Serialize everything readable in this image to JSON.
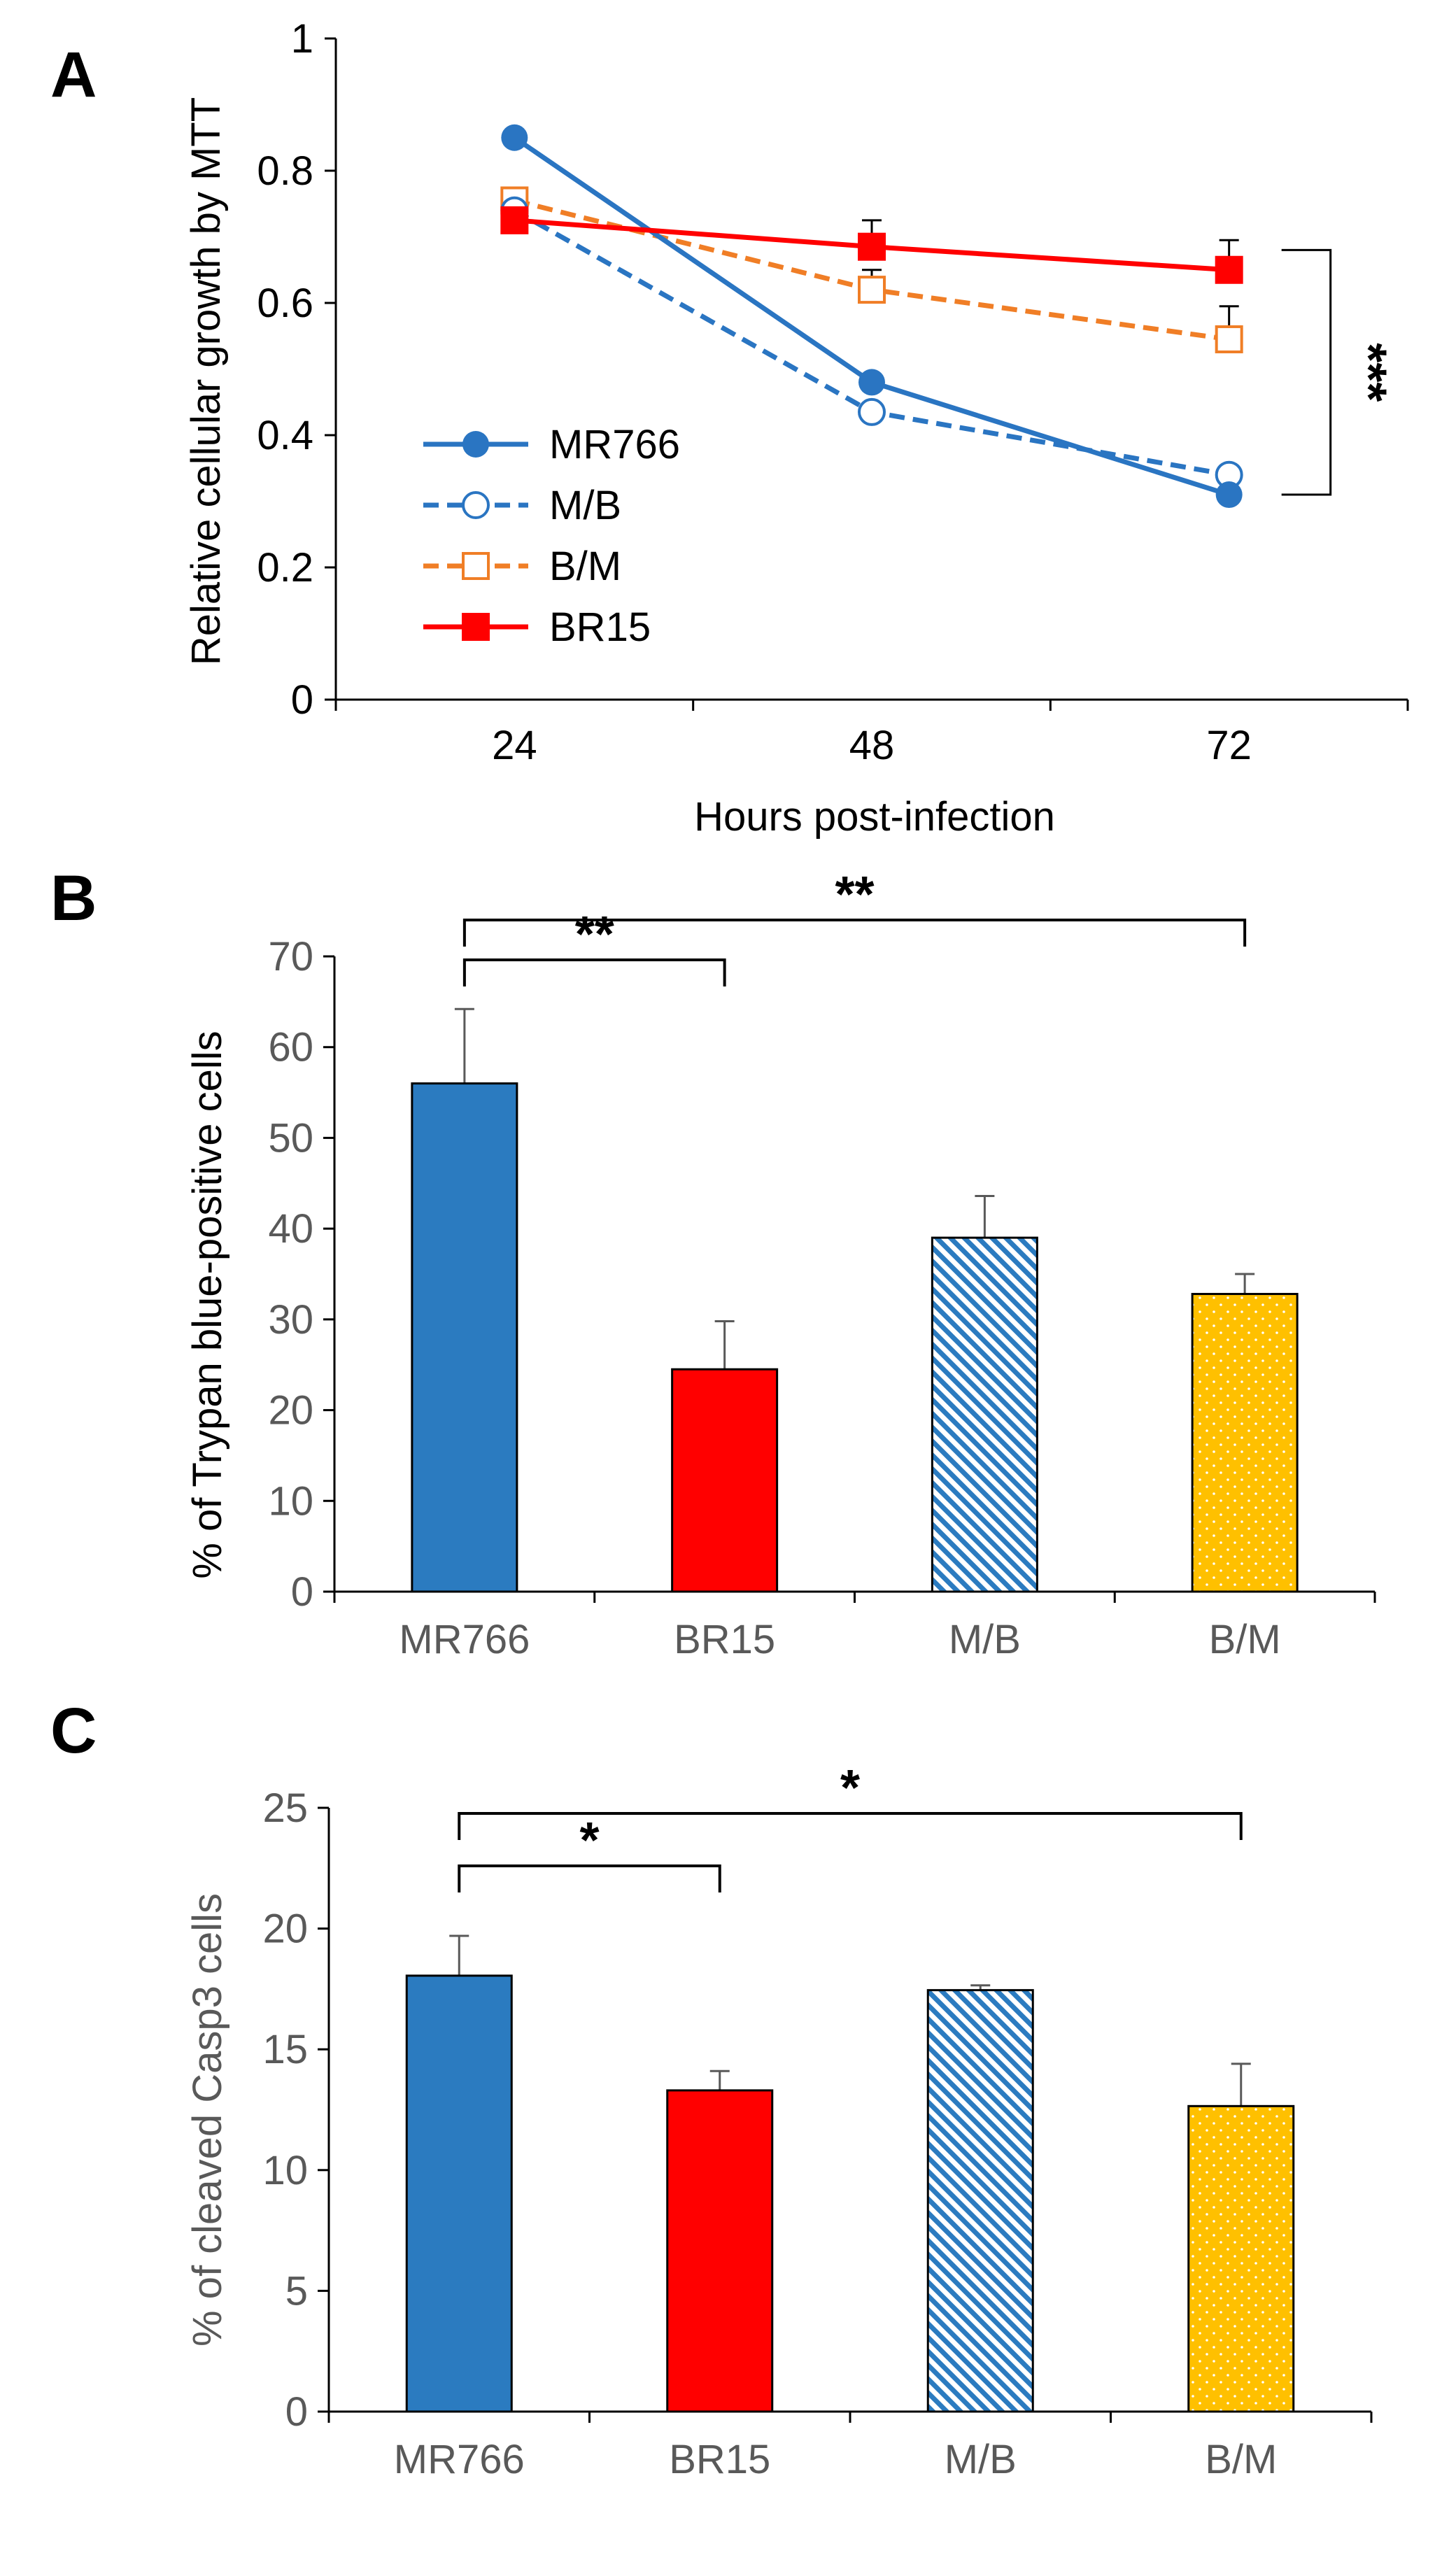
{
  "colors": {
    "mr766": "#2a75c2",
    "bar_blue": "#2b7bc0",
    "br15": "#ff0000",
    "bm": "#f07e26",
    "gold": "#ffc000",
    "axis_gray": "#595959"
  },
  "chart_data": [
    {
      "panel": "A",
      "type": "line",
      "xlabel": "Hours post-infection",
      "ylabel": "Relative cellular growth by MTT",
      "x": [
        "24",
        "48",
        "72"
      ],
      "ylim": [
        0,
        1
      ],
      "yticks": [
        "0",
        "0.2",
        "0.4",
        "0.6",
        "0.8",
        "1"
      ],
      "series": [
        {
          "name": "MR766",
          "values": [
            0.85,
            0.48,
            0.31
          ],
          "errors": [
            0,
            0,
            0
          ],
          "marker": "filled-circle",
          "dash": "solid",
          "color": "#2a75c2"
        },
        {
          "name": "M/B",
          "values": [
            0.74,
            0.435,
            0.34
          ],
          "errors": [
            0,
            0,
            0
          ],
          "marker": "open-circle",
          "dash": "dashed",
          "color": "#2a75c2"
        },
        {
          "name": "B/M",
          "values": [
            0.755,
            0.62,
            0.545
          ],
          "errors": [
            0,
            0.03,
            0.05
          ],
          "marker": "open-square",
          "dash": "dashed",
          "color": "#f07e26"
        },
        {
          "name": "BR15",
          "values": [
            0.725,
            0.685,
            0.65
          ],
          "errors": [
            0,
            0.04,
            0.045
          ],
          "marker": "filled-square",
          "dash": "solid",
          "color": "#ff0000"
        }
      ],
      "annotation": {
        "text": "***",
        "between": [
          0.31,
          0.68
        ],
        "at_x": "72"
      }
    },
    {
      "panel": "B",
      "type": "bar",
      "ylabel": "% of Trypan blue-positive cells",
      "categories": [
        "MR766",
        "BR15",
        "M/B",
        "B/M"
      ],
      "values": [
        56,
        24.5,
        39,
        32.8
      ],
      "errors": [
        8.2,
        5.3,
        4.6,
        2.2
      ],
      "fills": [
        "solid-blue",
        "solid-red",
        "diagonal-blue",
        "dotted-gold"
      ],
      "ylim": [
        0,
        70
      ],
      "yticks": [
        "0",
        "10",
        "20",
        "30",
        "40",
        "50",
        "60",
        "70"
      ],
      "significance": [
        {
          "from": "MR766",
          "to": "BR15",
          "label": "**"
        },
        {
          "from": "MR766",
          "to": "B/M",
          "label": "**"
        }
      ]
    },
    {
      "panel": "C",
      "type": "bar",
      "ylabel": "% of cleaved Casp3 cells",
      "categories": [
        "MR766",
        "BR15",
        "M/B",
        "B/M"
      ],
      "values": [
        18.05,
        13.3,
        17.45,
        12.65
      ],
      "errors": [
        1.65,
        0.8,
        0.2,
        1.75
      ],
      "fills": [
        "solid-blue",
        "solid-red",
        "diagonal-blue",
        "dotted-gold"
      ],
      "ylim": [
        0,
        25
      ],
      "yticks": [
        "0",
        "5",
        "10",
        "15",
        "20",
        "25"
      ],
      "significance": [
        {
          "from": "MR766",
          "to": "BR15",
          "label": "*"
        },
        {
          "from": "MR766",
          "to": "B/M",
          "label": "*"
        }
      ]
    }
  ]
}
